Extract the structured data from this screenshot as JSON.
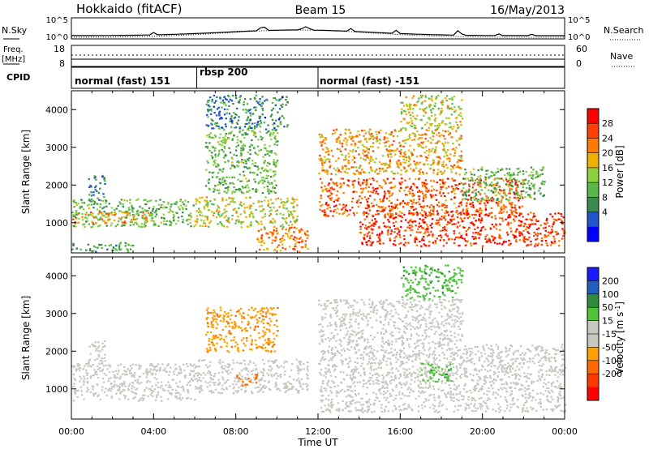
{
  "header": {
    "station": "Hokkaido (fitACF)",
    "beam": "Beam 15",
    "date": "16/May/2013"
  },
  "noise_panel": {
    "left_label": "N.Sky",
    "right_label": "N.Search",
    "left_ticks": [
      "10^5",
      "10^0"
    ],
    "right_ticks": [
      "10^5",
      "10^0"
    ]
  },
  "freq_panel": {
    "left_label": "Freq.",
    "left_unit": "[MHz]",
    "right_label": "Nave",
    "left_ticks": [
      "18",
      "8"
    ],
    "right_ticks": [
      "60",
      "0"
    ]
  },
  "cpid": {
    "label": "CPID",
    "segments": [
      {
        "name": "normal (fast) 151",
        "start": 0,
        "end": 6.1
      },
      {
        "name": "rbsp 200",
        "start": 6.1,
        "end": 12.0
      },
      {
        "name": "normal (fast) -151",
        "start": 12.0,
        "end": 24
      }
    ]
  },
  "x_axis": {
    "label": "Time UT",
    "ticks": [
      "00:00",
      "04:00",
      "08:00",
      "12:00",
      "16:00",
      "20:00",
      "00:00"
    ],
    "range": [
      0,
      24
    ]
  },
  "colors": {
    "power_scale": [
      "#0000ff",
      "#2255cc",
      "#3a8a50",
      "#5ab84a",
      "#8cd040",
      "#f0b000",
      "#ff7a00",
      "#ff4000",
      "#ff0000"
    ],
    "velocity_scale": [
      "#1a1aff",
      "#2060c0",
      "#2e8c3a",
      "#4ec43a",
      "#c8c8c0",
      "#c8c8c0",
      "#ffa000",
      "#ff6a00",
      "#ff3a00",
      "#ff0000"
    ]
  },
  "chart_data": [
    {
      "type": "heatmap",
      "title": "",
      "ylabel": "Slant Range [km]",
      "xlabel": "",
      "ylim": [
        200,
        4500
      ],
      "yticks": [
        "1000",
        "2000",
        "3000",
        "4000"
      ],
      "colorbar": {
        "label": "Power [dB]",
        "ticks": [
          "28",
          "24",
          "20",
          "16",
          "12",
          "8",
          "4"
        ],
        "range": [
          0,
          30
        ]
      },
      "bands": [
        {
          "t0": 0,
          "t1": 6,
          "r0": 900,
          "r1": 1650,
          "value": 12
        },
        {
          "t0": 0,
          "t1": 4,
          "r0": 1000,
          "r1": 1300,
          "value": 20
        },
        {
          "t0": 0.8,
          "t1": 1.6,
          "r0": 1600,
          "r1": 2300,
          "value": 8
        },
        {
          "t0": 0,
          "t1": 3,
          "r0": 250,
          "r1": 500,
          "value": 10
        },
        {
          "t0": 6,
          "t1": 11,
          "r0": 900,
          "r1": 1700,
          "value": 16
        },
        {
          "t0": 6.5,
          "t1": 10,
          "r0": 1800,
          "r1": 3500,
          "value": 12
        },
        {
          "t0": 6.5,
          "t1": 10.5,
          "r0": 3500,
          "r1": 4400,
          "value": 8
        },
        {
          "t0": 9,
          "t1": 11.5,
          "r0": 250,
          "r1": 900,
          "value": 22
        },
        {
          "t0": 12,
          "t1": 22,
          "r0": 1200,
          "r1": 2200,
          "value": 24
        },
        {
          "t0": 14,
          "t1": 24,
          "r0": 400,
          "r1": 1300,
          "value": 26
        },
        {
          "t0": 12,
          "t1": 19,
          "r0": 2300,
          "r1": 3500,
          "value": 20
        },
        {
          "t0": 16,
          "t1": 19,
          "r0": 3500,
          "r1": 4400,
          "value": 16
        },
        {
          "t0": 19,
          "t1": 23,
          "r0": 1600,
          "r1": 2500,
          "value": 12
        }
      ]
    },
    {
      "type": "heatmap",
      "title": "",
      "ylabel": "Slant Range [km]",
      "xlabel": "Time UT",
      "ylim": [
        200,
        4500
      ],
      "yticks": [
        "1000",
        "2000",
        "3000",
        "4000"
      ],
      "colorbar": {
        "label": "Velocity [m s^-1]",
        "ticks": [
          "200",
          "100",
          "50",
          "15",
          "-15",
          "-50",
          "-100",
          "-200"
        ],
        "range": [
          -250,
          250
        ]
      },
      "bands": [
        {
          "t0": 0,
          "t1": 6,
          "r0": 700,
          "r1": 1700,
          "value": 0
        },
        {
          "t0": 0.8,
          "t1": 1.6,
          "r0": 1600,
          "r1": 2300,
          "value": 0
        },
        {
          "t0": 6,
          "t1": 11.5,
          "r0": 900,
          "r1": 1800,
          "value": 0
        },
        {
          "t0": 6.5,
          "t1": 10,
          "r0": 2000,
          "r1": 3200,
          "value": -40
        },
        {
          "t0": 12,
          "t1": 24,
          "r0": 400,
          "r1": 2200,
          "value": 0
        },
        {
          "t0": 12,
          "t1": 19,
          "r0": 2200,
          "r1": 3400,
          "value": 0
        },
        {
          "t0": 16,
          "t1": 19,
          "r0": 3400,
          "r1": 4300,
          "value": 40
        },
        {
          "t0": 17,
          "t1": 18.5,
          "r0": 1200,
          "r1": 1700,
          "value": 40
        },
        {
          "t0": 8,
          "t1": 9,
          "r0": 1100,
          "r1": 1400,
          "value": -60
        }
      ]
    }
  ]
}
